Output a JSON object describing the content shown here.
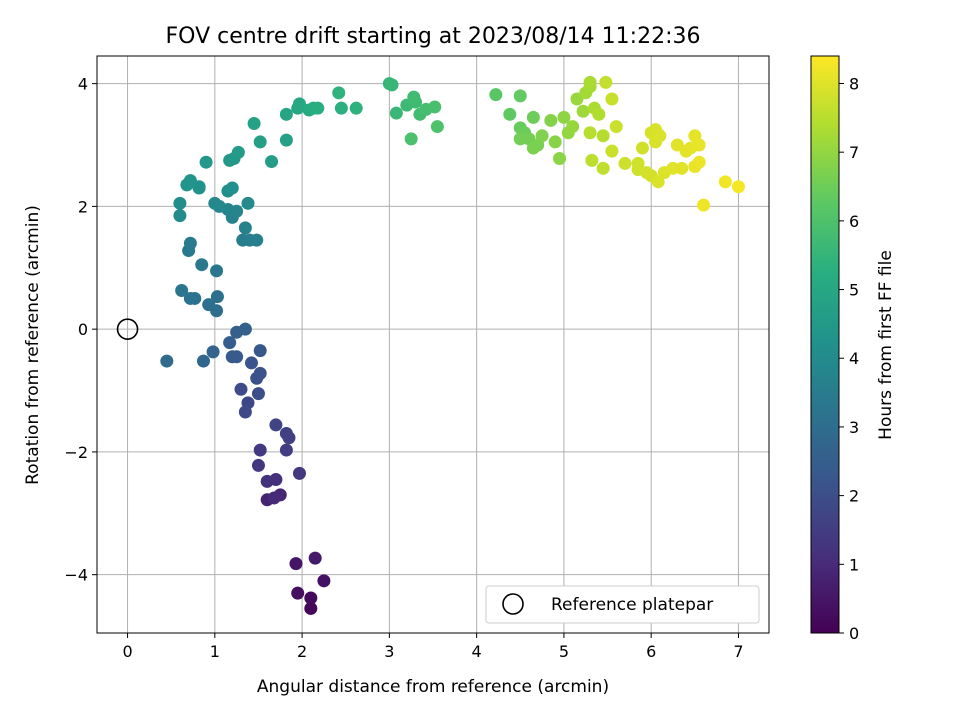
{
  "chart_data": {
    "type": "scatter",
    "title": "FOV centre drift starting at 2023/08/14 11:22:36",
    "xlabel": "Angular distance from reference (arcmin)",
    "ylabel": "Rotation from reference (arcmin)",
    "xlim": [
      -0.35,
      7.35
    ],
    "ylim": [
      -4.95,
      4.45
    ],
    "xticks": [
      0,
      1,
      2,
      3,
      4,
      5,
      6,
      7
    ],
    "yticks": [
      -4,
      -2,
      0,
      2,
      4
    ],
    "xtick_labels": [
      "0",
      "1",
      "2",
      "3",
      "4",
      "5",
      "6",
      "7"
    ],
    "ytick_labels": [
      "−4",
      "−2",
      "0",
      "2",
      "4"
    ],
    "grid": true,
    "colormap": "viridis",
    "colorbar": {
      "label": "Hours from first FF file",
      "range": [
        0,
        8.4
      ],
      "ticks": [
        0,
        1,
        2,
        3,
        4,
        5,
        6,
        7,
        8
      ],
      "tick_labels": [
        "0",
        "1",
        "2",
        "3",
        "4",
        "5",
        "6",
        "7",
        "8"
      ]
    },
    "legend": {
      "label": "Reference platepar",
      "position": "lower-right"
    },
    "reference_point": {
      "x": 0,
      "y": 0
    },
    "points": [
      {
        "x": 2.1,
        "y": -4.55,
        "t": 0.1
      },
      {
        "x": 2.1,
        "y": -4.38,
        "t": 0.2
      },
      {
        "x": 1.95,
        "y": -4.3,
        "t": 0.3
      },
      {
        "x": 2.25,
        "y": -4.1,
        "t": 0.4
      },
      {
        "x": 1.93,
        "y": -3.82,
        "t": 0.5
      },
      {
        "x": 2.15,
        "y": -3.73,
        "t": 0.6
      },
      {
        "x": 1.6,
        "y": -2.78,
        "t": 0.8
      },
      {
        "x": 1.75,
        "y": -2.7,
        "t": 0.9
      },
      {
        "x": 1.68,
        "y": -2.75,
        "t": 1.0
      },
      {
        "x": 1.7,
        "y": -2.45,
        "t": 1.1
      },
      {
        "x": 1.6,
        "y": -2.48,
        "t": 1.2
      },
      {
        "x": 1.5,
        "y": -2.22,
        "t": 1.3
      },
      {
        "x": 1.97,
        "y": -2.35,
        "t": 1.35
      },
      {
        "x": 1.52,
        "y": -1.97,
        "t": 1.4
      },
      {
        "x": 1.82,
        "y": -1.97,
        "t": 1.5
      },
      {
        "x": 1.82,
        "y": -1.7,
        "t": 1.55
      },
      {
        "x": 1.85,
        "y": -1.77,
        "t": 1.6
      },
      {
        "x": 1.7,
        "y": -1.56,
        "t": 1.7
      },
      {
        "x": 1.38,
        "y": -1.2,
        "t": 1.8
      },
      {
        "x": 1.35,
        "y": -1.35,
        "t": 1.85
      },
      {
        "x": 1.3,
        "y": -0.98,
        "t": 1.9
      },
      {
        "x": 1.5,
        "y": -1.05,
        "t": 2.0
      },
      {
        "x": 1.48,
        "y": -0.8,
        "t": 2.05
      },
      {
        "x": 1.52,
        "y": -0.72,
        "t": 2.1
      },
      {
        "x": 1.42,
        "y": -0.55,
        "t": 2.2
      },
      {
        "x": 1.52,
        "y": -0.35,
        "t": 2.3
      },
      {
        "x": 1.2,
        "y": -0.45,
        "t": 2.35
      },
      {
        "x": 1.25,
        "y": -0.45,
        "t": 2.4
      },
      {
        "x": 1.17,
        "y": -0.22,
        "t": 2.5
      },
      {
        "x": 1.25,
        "y": -0.05,
        "t": 2.55
      },
      {
        "x": 1.35,
        "y": 0.0,
        "t": 2.6
      },
      {
        "x": 0.98,
        "y": -0.37,
        "t": 2.7
      },
      {
        "x": 0.87,
        "y": -0.52,
        "t": 2.8
      },
      {
        "x": 0.45,
        "y": -0.52,
        "t": 2.9
      },
      {
        "x": 1.02,
        "y": 0.3,
        "t": 3.0
      },
      {
        "x": 0.93,
        "y": 0.4,
        "t": 3.05
      },
      {
        "x": 1.03,
        "y": 0.53,
        "t": 3.1
      },
      {
        "x": 0.77,
        "y": 0.5,
        "t": 3.15
      },
      {
        "x": 0.72,
        "y": 0.5,
        "t": 3.2
      },
      {
        "x": 0.62,
        "y": 0.63,
        "t": 3.25
      },
      {
        "x": 1.02,
        "y": 0.95,
        "t": 3.3
      },
      {
        "x": 0.85,
        "y": 1.05,
        "t": 3.35
      },
      {
        "x": 0.7,
        "y": 1.28,
        "t": 3.4
      },
      {
        "x": 0.72,
        "y": 1.4,
        "t": 3.45
      },
      {
        "x": 1.32,
        "y": 1.45,
        "t": 3.5
      },
      {
        "x": 1.4,
        "y": 1.45,
        "t": 3.55
      },
      {
        "x": 1.48,
        "y": 1.45,
        "t": 3.6
      },
      {
        "x": 1.35,
        "y": 1.65,
        "t": 3.65
      },
      {
        "x": 1.2,
        "y": 1.82,
        "t": 3.7
      },
      {
        "x": 1.25,
        "y": 1.92,
        "t": 3.75
      },
      {
        "x": 1.15,
        "y": 1.95,
        "t": 3.8
      },
      {
        "x": 1.05,
        "y": 2.0,
        "t": 3.85
      },
      {
        "x": 1.0,
        "y": 2.05,
        "t": 3.9
      },
      {
        "x": 1.38,
        "y": 2.05,
        "t": 3.95
      },
      {
        "x": 0.6,
        "y": 1.85,
        "t": 4.0
      },
      {
        "x": 0.6,
        "y": 2.05,
        "t": 4.05
      },
      {
        "x": 1.15,
        "y": 2.25,
        "t": 4.1
      },
      {
        "x": 1.2,
        "y": 2.3,
        "t": 4.15
      },
      {
        "x": 0.82,
        "y": 2.32,
        "t": 4.2
      },
      {
        "x": 0.82,
        "y": 2.3,
        "t": 4.25
      },
      {
        "x": 0.68,
        "y": 2.35,
        "t": 4.3
      },
      {
        "x": 0.72,
        "y": 2.42,
        "t": 4.35
      },
      {
        "x": 0.9,
        "y": 2.72,
        "t": 4.4
      },
      {
        "x": 1.17,
        "y": 2.75,
        "t": 4.45
      },
      {
        "x": 1.22,
        "y": 2.78,
        "t": 4.5
      },
      {
        "x": 1.27,
        "y": 2.88,
        "t": 4.55
      },
      {
        "x": 1.65,
        "y": 2.73,
        "t": 4.6
      },
      {
        "x": 1.52,
        "y": 3.05,
        "t": 4.7
      },
      {
        "x": 1.82,
        "y": 3.08,
        "t": 4.75
      },
      {
        "x": 1.45,
        "y": 3.35,
        "t": 4.8
      },
      {
        "x": 1.82,
        "y": 3.5,
        "t": 4.9
      },
      {
        "x": 1.95,
        "y": 3.6,
        "t": 5.0
      },
      {
        "x": 1.97,
        "y": 3.67,
        "t": 5.05
      },
      {
        "x": 2.08,
        "y": 3.57,
        "t": 5.1
      },
      {
        "x": 2.13,
        "y": 3.6,
        "t": 5.15
      },
      {
        "x": 2.18,
        "y": 3.6,
        "t": 5.2
      },
      {
        "x": 2.45,
        "y": 3.6,
        "t": 5.3
      },
      {
        "x": 2.62,
        "y": 3.6,
        "t": 5.35
      },
      {
        "x": 2.42,
        "y": 3.85,
        "t": 5.4
      },
      {
        "x": 3.0,
        "y": 4.0,
        "t": 5.5
      },
      {
        "x": 3.03,
        "y": 3.98,
        "t": 5.55
      },
      {
        "x": 3.08,
        "y": 3.52,
        "t": 5.6
      },
      {
        "x": 3.2,
        "y": 3.65,
        "t": 5.65
      },
      {
        "x": 3.3,
        "y": 3.7,
        "t": 5.7
      },
      {
        "x": 3.28,
        "y": 3.78,
        "t": 5.75
      },
      {
        "x": 3.35,
        "y": 3.5,
        "t": 5.8
      },
      {
        "x": 3.42,
        "y": 3.58,
        "t": 5.85
      },
      {
        "x": 3.52,
        "y": 3.62,
        "t": 5.9
      },
      {
        "x": 3.25,
        "y": 3.1,
        "t": 5.95
      },
      {
        "x": 3.55,
        "y": 3.3,
        "t": 6.0
      },
      {
        "x": 4.22,
        "y": 3.82,
        "t": 6.2
      },
      {
        "x": 4.38,
        "y": 3.5,
        "t": 6.3
      },
      {
        "x": 4.5,
        "y": 3.8,
        "t": 6.35
      },
      {
        "x": 4.5,
        "y": 3.28,
        "t": 6.4
      },
      {
        "x": 4.55,
        "y": 3.2,
        "t": 6.45
      },
      {
        "x": 4.65,
        "y": 3.45,
        "t": 6.5
      },
      {
        "x": 4.5,
        "y": 3.1,
        "t": 6.55
      },
      {
        "x": 4.6,
        "y": 3.1,
        "t": 6.6
      },
      {
        "x": 4.7,
        "y": 3.0,
        "t": 6.65
      },
      {
        "x": 4.65,
        "y": 2.95,
        "t": 6.7
      },
      {
        "x": 4.75,
        "y": 3.15,
        "t": 6.75
      },
      {
        "x": 4.85,
        "y": 3.4,
        "t": 6.8
      },
      {
        "x": 4.9,
        "y": 3.05,
        "t": 6.85
      },
      {
        "x": 4.95,
        "y": 2.78,
        "t": 6.9
      },
      {
        "x": 5.0,
        "y": 3.45,
        "t": 6.95
      },
      {
        "x": 5.05,
        "y": 3.2,
        "t": 7.0
      },
      {
        "x": 5.1,
        "y": 3.3,
        "t": 7.05
      },
      {
        "x": 5.15,
        "y": 3.75,
        "t": 7.1
      },
      {
        "x": 5.22,
        "y": 3.55,
        "t": 7.15
      },
      {
        "x": 5.25,
        "y": 3.85,
        "t": 7.2
      },
      {
        "x": 5.3,
        "y": 3.95,
        "t": 7.25
      },
      {
        "x": 5.3,
        "y": 4.02,
        "t": 7.3
      },
      {
        "x": 5.35,
        "y": 3.6,
        "t": 7.35
      },
      {
        "x": 5.4,
        "y": 3.5,
        "t": 7.4
      },
      {
        "x": 5.45,
        "y": 3.15,
        "t": 7.45
      },
      {
        "x": 5.3,
        "y": 3.2,
        "t": 7.5
      },
      {
        "x": 5.32,
        "y": 2.75,
        "t": 7.55
      },
      {
        "x": 5.45,
        "y": 2.62,
        "t": 7.6
      },
      {
        "x": 5.48,
        "y": 4.02,
        "t": 7.65
      },
      {
        "x": 5.55,
        "y": 3.75,
        "t": 7.7
      },
      {
        "x": 5.6,
        "y": 3.3,
        "t": 7.72
      },
      {
        "x": 5.55,
        "y": 2.9,
        "t": 7.74
      },
      {
        "x": 5.7,
        "y": 2.7,
        "t": 7.76
      },
      {
        "x": 5.85,
        "y": 2.7,
        "t": 7.78
      },
      {
        "x": 5.85,
        "y": 2.6,
        "t": 7.8
      },
      {
        "x": 5.9,
        "y": 2.95,
        "t": 7.82
      },
      {
        "x": 5.95,
        "y": 2.55,
        "t": 7.84
      },
      {
        "x": 6.0,
        "y": 2.5,
        "t": 7.86
      },
      {
        "x": 6.0,
        "y": 3.2,
        "t": 7.88
      },
      {
        "x": 6.05,
        "y": 3.25,
        "t": 7.9
      },
      {
        "x": 6.05,
        "y": 3.05,
        "t": 7.92
      },
      {
        "x": 6.1,
        "y": 3.15,
        "t": 7.94
      },
      {
        "x": 6.08,
        "y": 2.4,
        "t": 7.96
      },
      {
        "x": 6.15,
        "y": 2.55,
        "t": 7.98
      },
      {
        "x": 6.25,
        "y": 2.62,
        "t": 8.0
      },
      {
        "x": 6.35,
        "y": 2.62,
        "t": 8.02
      },
      {
        "x": 6.3,
        "y": 3.0,
        "t": 8.04
      },
      {
        "x": 6.4,
        "y": 2.9,
        "t": 8.06
      },
      {
        "x": 6.45,
        "y": 2.95,
        "t": 8.08
      },
      {
        "x": 6.5,
        "y": 3.15,
        "t": 8.1
      },
      {
        "x": 6.55,
        "y": 3.0,
        "t": 8.12
      },
      {
        "x": 6.5,
        "y": 2.65,
        "t": 8.14
      },
      {
        "x": 6.55,
        "y": 2.72,
        "t": 8.16
      },
      {
        "x": 6.6,
        "y": 2.02,
        "t": 8.2
      },
      {
        "x": 6.85,
        "y": 2.4,
        "t": 8.25
      },
      {
        "x": 7.0,
        "y": 2.32,
        "t": 8.3
      }
    ]
  }
}
